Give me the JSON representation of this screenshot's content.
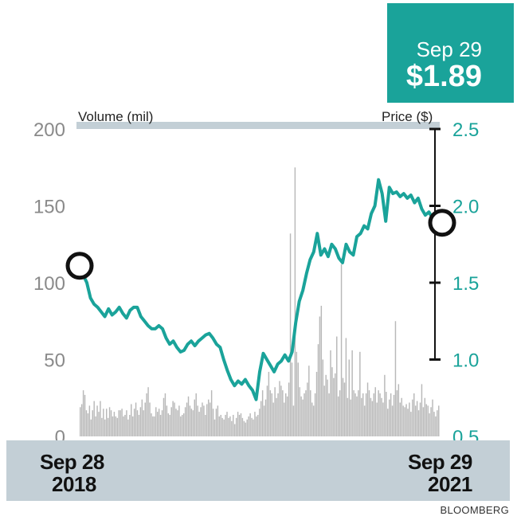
{
  "callout": {
    "date": "Sep 29",
    "price": "$1.89"
  },
  "axis_titles": {
    "left": "Volume (mil)",
    "right": "Price ($)"
  },
  "x_labels": [
    {
      "month": "Sep 28",
      "year": "2018"
    },
    {
      "month": "Sep 29",
      "year": "2021"
    }
  ],
  "source": "BLOOMBERG",
  "colors": {
    "price_line": "#1aa39a",
    "volume_bars": "#b8b8b8",
    "accent_box": "#1aa39a",
    "band": "#c3cfd6"
  },
  "chart_data": {
    "type": "line",
    "x_range": [
      "Sep 28 2018",
      "Sep 29 2021"
    ],
    "left_axis": {
      "label": "Volume (mil)",
      "ticks": [
        "0",
        "50",
        "100",
        "150",
        "200"
      ],
      "range": [
        0,
        200
      ]
    },
    "right_axis": {
      "label": "Price ($)",
      "ticks": [
        "0.5",
        "1.0",
        "1.5",
        "2.0",
        "2.5"
      ],
      "range": [
        0.5,
        2.5
      ]
    },
    "markers": [
      {
        "point": "start",
        "x": 0.0,
        "price": 1.61
      },
      {
        "point": "end",
        "x": 1.0,
        "price": 1.89
      }
    ],
    "series": [
      {
        "type": "line",
        "axis": "right",
        "points": [
          [
            0.0,
            1.61
          ],
          [
            0.01,
            1.55
          ],
          [
            0.02,
            1.5
          ],
          [
            0.03,
            1.4
          ],
          [
            0.04,
            1.36
          ],
          [
            0.05,
            1.34
          ],
          [
            0.06,
            1.31
          ],
          [
            0.07,
            1.28
          ],
          [
            0.08,
            1.33
          ],
          [
            0.09,
            1.29
          ],
          [
            0.1,
            1.31
          ],
          [
            0.11,
            1.34
          ],
          [
            0.12,
            1.3
          ],
          [
            0.13,
            1.27
          ],
          [
            0.14,
            1.32
          ],
          [
            0.15,
            1.34
          ],
          [
            0.16,
            1.34
          ],
          [
            0.17,
            1.28
          ],
          [
            0.18,
            1.25
          ],
          [
            0.19,
            1.22
          ],
          [
            0.2,
            1.2
          ],
          [
            0.21,
            1.2
          ],
          [
            0.22,
            1.22
          ],
          [
            0.23,
            1.2
          ],
          [
            0.24,
            1.14
          ],
          [
            0.25,
            1.1
          ],
          [
            0.26,
            1.12
          ],
          [
            0.27,
            1.08
          ],
          [
            0.28,
            1.05
          ],
          [
            0.29,
            1.06
          ],
          [
            0.3,
            1.1
          ],
          [
            0.31,
            1.12
          ],
          [
            0.32,
            1.09
          ],
          [
            0.33,
            1.12
          ],
          [
            0.34,
            1.14
          ],
          [
            0.35,
            1.16
          ],
          [
            0.36,
            1.17
          ],
          [
            0.37,
            1.14
          ],
          [
            0.38,
            1.1
          ],
          [
            0.39,
            1.08
          ],
          [
            0.4,
            1.0
          ],
          [
            0.41,
            0.93
          ],
          [
            0.42,
            0.87
          ],
          [
            0.43,
            0.83
          ],
          [
            0.44,
            0.86
          ],
          [
            0.45,
            0.84
          ],
          [
            0.46,
            0.87
          ],
          [
            0.47,
            0.83
          ],
          [
            0.48,
            0.8
          ],
          [
            0.49,
            0.74
          ],
          [
            0.5,
            0.92
          ],
          [
            0.51,
            1.04
          ],
          [
            0.52,
            1.0
          ],
          [
            0.53,
            0.96
          ],
          [
            0.54,
            0.92
          ],
          [
            0.55,
            0.97
          ],
          [
            0.56,
            0.99
          ],
          [
            0.57,
            1.03
          ],
          [
            0.58,
            0.99
          ],
          [
            0.59,
            1.05
          ],
          [
            0.6,
            1.24
          ],
          [
            0.61,
            1.38
          ],
          [
            0.62,
            1.45
          ],
          [
            0.63,
            1.56
          ],
          [
            0.64,
            1.65
          ],
          [
            0.65,
            1.7
          ],
          [
            0.66,
            1.82
          ],
          [
            0.67,
            1.68
          ],
          [
            0.68,
            1.72
          ],
          [
            0.69,
            1.67
          ],
          [
            0.7,
            1.75
          ],
          [
            0.71,
            1.72
          ],
          [
            0.72,
            1.66
          ],
          [
            0.73,
            1.63
          ],
          [
            0.74,
            1.75
          ],
          [
            0.75,
            1.7
          ],
          [
            0.76,
            1.68
          ],
          [
            0.77,
            1.8
          ],
          [
            0.78,
            1.82
          ],
          [
            0.79,
            1.87
          ],
          [
            0.8,
            1.85
          ],
          [
            0.81,
            1.95
          ],
          [
            0.82,
            2.0
          ],
          [
            0.83,
            2.17
          ],
          [
            0.84,
            2.08
          ],
          [
            0.85,
            1.9
          ],
          [
            0.86,
            2.12
          ],
          [
            0.87,
            2.08
          ],
          [
            0.88,
            2.09
          ],
          [
            0.89,
            2.06
          ],
          [
            0.9,
            2.08
          ],
          [
            0.91,
            2.05
          ],
          [
            0.92,
            2.07
          ],
          [
            0.93,
            2.02
          ],
          [
            0.94,
            2.05
          ],
          [
            0.95,
            1.98
          ],
          [
            0.96,
            1.94
          ],
          [
            0.97,
            1.96
          ],
          [
            0.98,
            1.92
          ],
          [
            0.99,
            1.9
          ],
          [
            1.0,
            1.89
          ]
        ]
      },
      {
        "type": "bar",
        "axis": "left",
        "description_values_in_mil": true,
        "values": [
          19,
          21,
          30,
          27,
          17,
          15,
          20,
          11,
          17,
          23,
          13,
          20,
          16,
          23,
          12,
          18,
          11,
          18,
          12,
          19,
          17,
          13,
          16,
          13,
          12,
          17,
          17,
          18,
          13,
          14,
          17,
          11,
          14,
          21,
          13,
          18,
          22,
          17,
          14,
          19,
          24,
          17,
          22,
          28,
          32,
          22,
          15,
          13,
          13,
          19,
          16,
          18,
          14,
          17,
          25,
          28,
          20,
          15,
          14,
          19,
          23,
          22,
          18,
          17,
          20,
          13,
          14,
          15,
          19,
          22,
          26,
          20,
          18,
          17,
          24,
          28,
          20,
          16,
          19,
          22,
          20,
          14,
          21,
          24,
          22,
          30,
          18,
          11,
          18,
          20,
          13,
          14,
          12,
          11,
          14,
          16,
          12,
          13,
          10,
          14,
          8,
          12,
          16,
          14,
          15,
          12,
          10,
          9,
          11,
          13,
          15,
          12,
          11,
          16,
          13,
          14,
          18,
          23,
          30,
          20,
          24,
          33,
          42,
          30,
          28,
          22,
          32,
          25,
          28,
          36,
          33,
          30,
          22,
          28,
          26,
          35,
          132,
          48,
          20,
          175,
          55,
          48,
          32,
          26,
          24,
          28,
          30,
          35,
          46,
          30,
          22,
          20,
          28,
          42,
          60,
          78,
          85,
          50,
          33,
          40,
          37,
          28,
          56,
          45,
          38,
          41,
          65,
          26,
          30,
          112,
          38,
          35,
          64,
          25,
          50,
          24,
          56,
          30,
          28,
          26,
          30,
          55,
          25,
          28,
          20,
          28,
          35,
          30,
          25,
          23,
          28,
          32,
          22,
          30,
          28,
          25,
          22,
          40,
          29,
          18,
          24,
          28,
          20,
          27,
          75,
          30,
          34,
          22,
          25,
          20,
          19,
          21,
          18,
          22,
          16,
          24,
          28,
          20,
          23,
          17,
          22,
          34,
          19,
          25,
          21,
          20,
          15,
          19,
          24,
          16,
          13,
          17,
          20
        ]
      }
    ],
    "spikes": [
      {
        "approx_x": 0.35,
        "volume": 55
      },
      {
        "approx_x": 0.55,
        "volume": 132
      },
      {
        "approx_x": 0.56,
        "volume": 175
      },
      {
        "approx_x": 0.64,
        "volume": 112
      },
      {
        "approx_x": 0.85,
        "volume": 75
      }
    ],
    "grid": false,
    "legend": "none"
  }
}
